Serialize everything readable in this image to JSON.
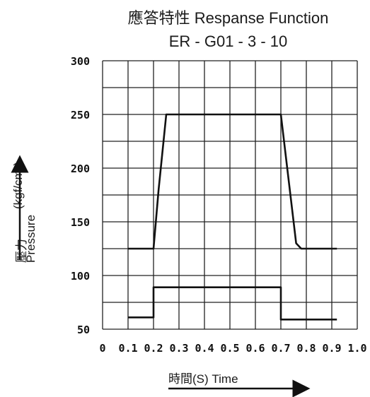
{
  "chart_data": {
    "type": "line",
    "title": "應答特性 Respanse Function",
    "subtitle": "ER - G01 - 3 - 10",
    "xlabel": "時間(S) Time",
    "ylabel_left": "壓力",
    "ylabel_unit": "(kgf/cm²)",
    "ylabel_en": "Pressure",
    "x_ticks": [
      "0",
      "0.1",
      "0.2",
      "0.3",
      "0.4",
      "0.5",
      "0.6",
      "0.7",
      "0.8",
      "0.9",
      "1.0"
    ],
    "y_ticks": [
      "50",
      "100",
      "150",
      "200",
      "250",
      "300"
    ],
    "xlim": [
      0,
      1.0
    ],
    "ylim": [
      50,
      300
    ],
    "grid": true,
    "series": [
      {
        "x": [
          0.1,
          0.2,
          0.22,
          0.25,
          0.7,
          0.76,
          0.78,
          0.92
        ],
        "y": [
          125,
          125,
          180,
          250,
          250,
          130,
          125,
          125
        ]
      },
      {
        "x": [
          0.1,
          0.2,
          0.2,
          0.7,
          0.7,
          0.92
        ],
        "y": [
          61,
          61,
          89,
          89,
          59,
          59
        ]
      }
    ]
  }
}
